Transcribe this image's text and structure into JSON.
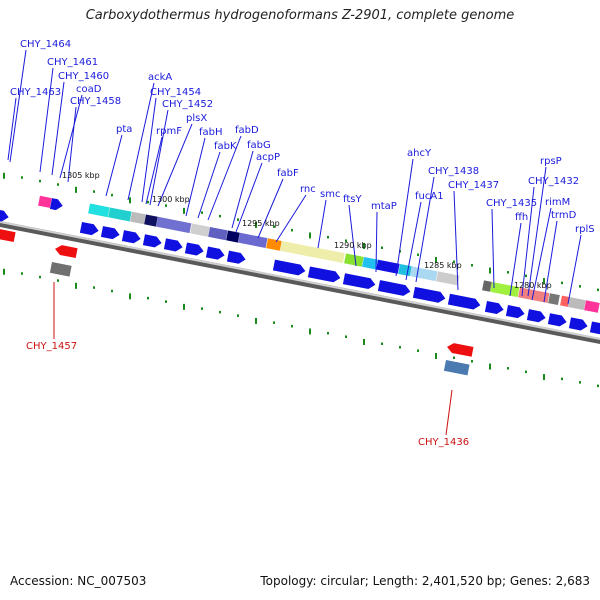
{
  "title": "Carboxydothermus hydrogenoformans Z-2901, complete genome",
  "footer": {
    "accession": "Accession: NC_007503",
    "summary": "Topology: circular; Length: 2,401,520 bp; Genes: 2,683"
  },
  "scale_labels": [
    "1305 kbp",
    "1300 kbp",
    "1295 kbp",
    "1290 kbp",
    "1285 kbp",
    "1280 kbp"
  ],
  "upper_gene_labels": [
    "CHY_1464",
    "CHY_1461",
    "CHY_1460",
    "CHY_1463",
    "coaD",
    "CHY_1458",
    "ackA",
    "CHY_1454",
    "CHY_1452",
    "plsX",
    "pta",
    "rpmF",
    "fabH",
    "fabD",
    "fabK",
    "fabG",
    "acpP",
    "fabF",
    "rnc",
    "smc",
    "ftsY",
    "mtaP",
    "ahcY",
    "fucA1",
    "CHY_1438",
    "CHY_1437",
    "CHY_1435",
    "ffh",
    "rpsP",
    "CHY_1432",
    "rimM",
    "trmD",
    "rplS"
  ],
  "lower_gene_labels": [
    "CHY_1457",
    "CHY_1436"
  ],
  "colors": {
    "forward_gene": "#1010e0",
    "reverse_gene": "#ee1010",
    "upper_label": "#1a1adc",
    "lower_label": "#cc1010",
    "tick": "#1a8a1a"
  }
}
